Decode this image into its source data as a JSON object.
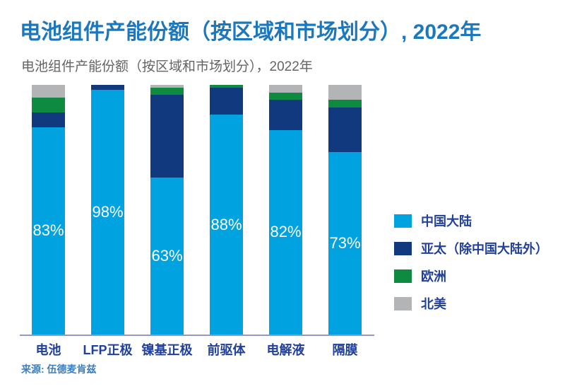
{
  "title": "电池组件产能份额（按区域和市场划分）, 2022年",
  "subtitle": "电池组件产能份额（按区域和市场划分），2022年",
  "source": "来源: 伍德麦肯兹",
  "colors": {
    "title_blue": "#1C78BE",
    "subtitle_gray": "#636466",
    "axis_line": "#9199C4",
    "axis_label_navy": "#21409A",
    "source_blue": "#3D7EBB",
    "china_mainland": "#00A3E0",
    "apac_ex_china": "#103A7D",
    "europe": "#0E8B40",
    "north_america": "#B3B4B6"
  },
  "chart_data": {
    "type": "bar",
    "stacked": true,
    "unit": "%",
    "title": "电池组件产能份额（按区域和市场划分），2022年",
    "categories": [
      "电池",
      "LFP正极",
      "镍基正极",
      "前驱体",
      "电解液",
      "隔膜"
    ],
    "series": [
      {
        "key": "china-mainland",
        "name": "中国大陆",
        "color": "#00A3E0",
        "values": [
          83,
          98,
          63,
          88,
          82,
          73
        ]
      },
      {
        "key": "apac-ex-china",
        "name": "亚太（除中国大陆外）",
        "color": "#103A7D",
        "values": [
          6,
          2,
          33,
          11,
          12,
          18
        ]
      },
      {
        "key": "europe",
        "name": "欧洲",
        "color": "#0E8B40",
        "values": [
          6,
          0,
          3,
          1,
          3,
          3
        ]
      },
      {
        "key": "north-america",
        "name": "北美",
        "color": "#B3B4B6",
        "values": [
          5,
          0,
          1,
          0,
          3,
          6
        ]
      }
    ],
    "data_labels": [
      "83%",
      "98%",
      "63%",
      "88%",
      "82%",
      "73%"
    ],
    "ylim": [
      0,
      100
    ],
    "grid": false,
    "legend_position": "right"
  }
}
